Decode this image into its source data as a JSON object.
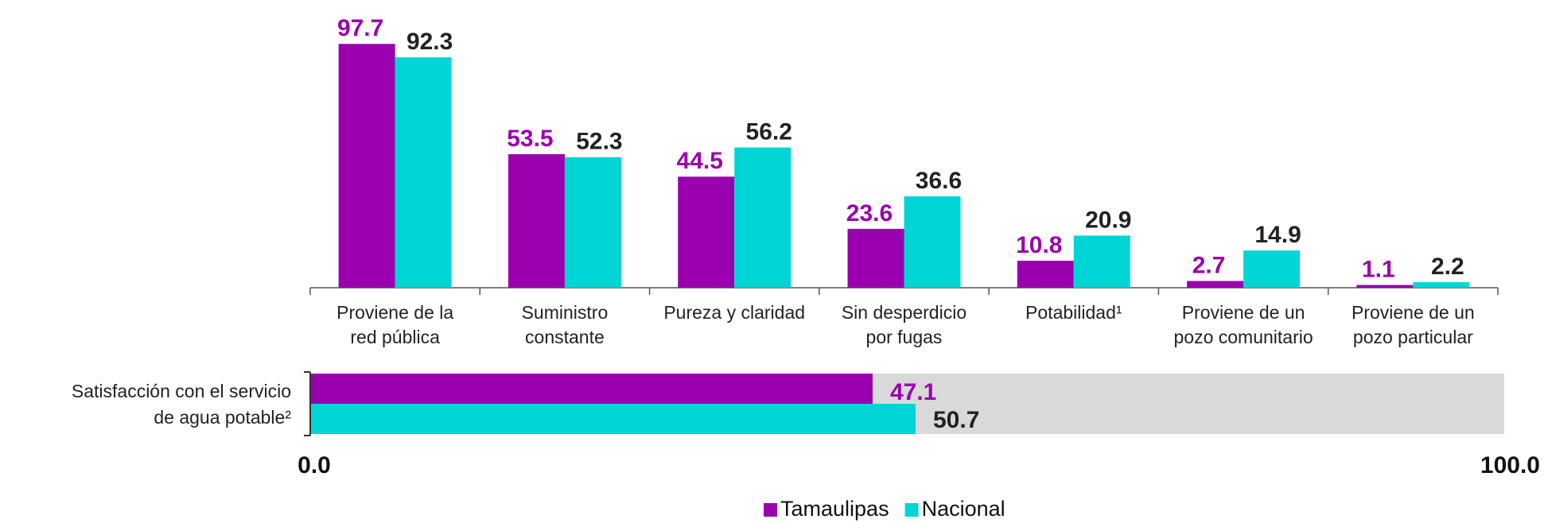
{
  "chart_data": [
    {
      "type": "bar",
      "categories": [
        "Proviene de la\nred pública",
        "Suministro\nconstante",
        "Pureza y claridad",
        "Sin desperdicio\npor fugas",
        "Potabilidad¹",
        "Proviene de un\npozo comunitario",
        "Proviene de un\npozo particular"
      ],
      "series": [
        {
          "name": "Tamaulipas",
          "color": "#9b00af",
          "values": [
            97.7,
            53.5,
            44.5,
            23.6,
            10.8,
            2.7,
            1.1
          ]
        },
        {
          "name": "Nacional",
          "color": "#00d5d5",
          "values": [
            92.3,
            52.3,
            56.2,
            36.6,
            20.9,
            14.9,
            2.2
          ]
        }
      ],
      "ylim": [
        0,
        100
      ]
    },
    {
      "type": "hbar",
      "categories": [
        "Satisfacción con el servicio\nde agua potable²"
      ],
      "series": [
        {
          "name": "Tamaulipas",
          "color": "#9b00af",
          "values": [
            47.1
          ]
        },
        {
          "name": "Nacional",
          "color": "#00d5d5",
          "values": [
            50.7
          ]
        }
      ],
      "xlim": [
        0,
        100
      ],
      "xticks": [
        {
          "value": 0,
          "label": "0.0"
        },
        {
          "value": 100,
          "label": "100.0"
        }
      ]
    }
  ]
}
